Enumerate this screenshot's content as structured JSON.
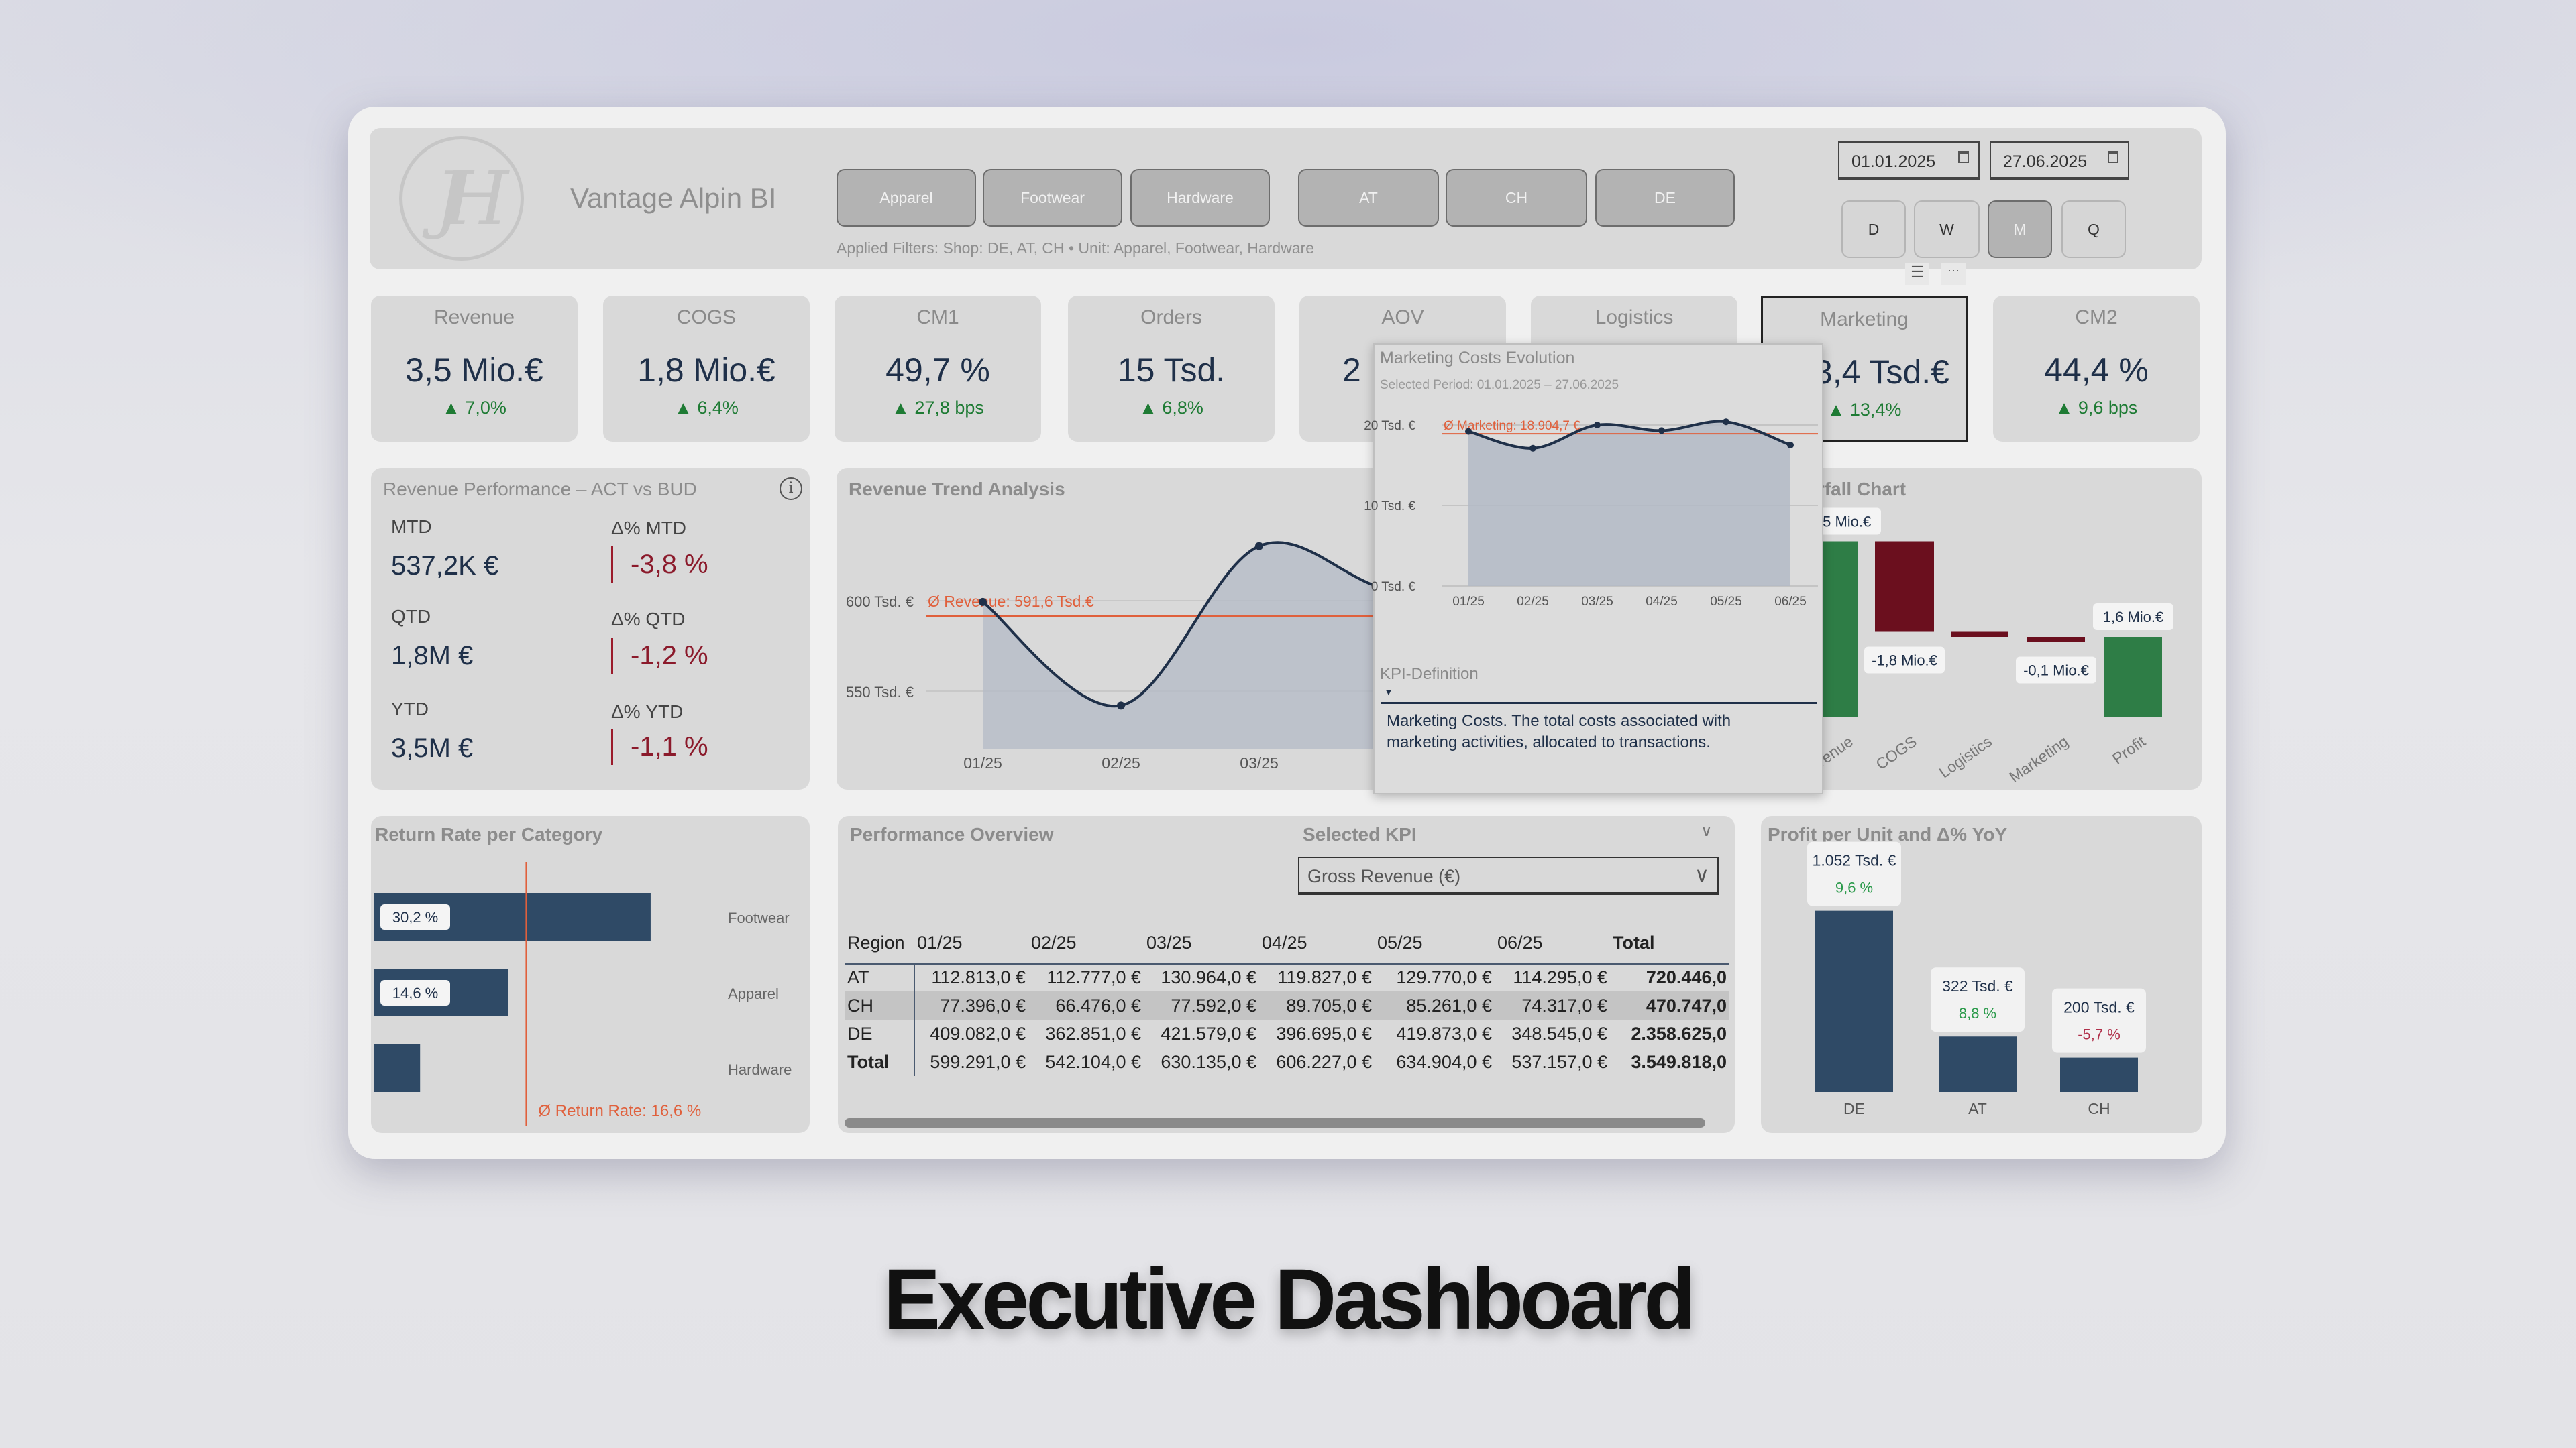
{
  "header": {
    "logo_text": "JH",
    "title": "Vantage Alpin BI",
    "category_buttons": [
      "Apparel",
      "Footwear",
      "Hardware"
    ],
    "shop_buttons": [
      "AT",
      "CH",
      "DE"
    ],
    "filters_text": "Applied Filters: Shop: DE, AT, CH • Unit: Apparel, Footwear, Hardware",
    "date_from": "01.01.2025",
    "date_to": "27.06.2025",
    "granularity": [
      "D",
      "W",
      "M",
      "Q"
    ],
    "granularity_selected": "M"
  },
  "kpis": [
    {
      "title": "Revenue",
      "value": "3,5 Mio.€",
      "delta": "▲ 7,0%"
    },
    {
      "title": "COGS",
      "value": "1,8 Mio.€",
      "delta": "▲ 6,4%"
    },
    {
      "title": "CM1",
      "value": "49,7 %",
      "delta": "▲ 27,8 bps"
    },
    {
      "title": "Orders",
      "value": "15 Tsd.",
      "delta": "▲ 6,8%"
    },
    {
      "title": "AOV",
      "value": "2",
      "delta": ""
    },
    {
      "title": "Logistics",
      "value": "",
      "delta": ""
    },
    {
      "title": "Marketing",
      "value": "113,4 Tsd.€",
      "delta": "▲ 13,4%"
    },
    {
      "title": "CM2",
      "value": "44,4 %",
      "delta": "▲ 9,6 bps"
    }
  ],
  "colors": {
    "navy": "#1f3049",
    "bar": "#2f4a66",
    "positive": "#1e7b34",
    "negative": "#8b1a2b",
    "average_line": "#e0603c",
    "waterfall_up": "#2e7d46",
    "waterfall_down": "#6b0f1e"
  },
  "revenue_performance": {
    "title": "Revenue Performance – ACT vs BUD",
    "info_icon": "info-icon",
    "rows": [
      {
        "label": "MTD",
        "value": "537,2K €",
        "delta_label": "Δ% MTD",
        "delta": "-3,8 %"
      },
      {
        "label": "QTD",
        "value": "1,8M €",
        "delta_label": "Δ% QTD",
        "delta": "-1,2 %"
      },
      {
        "label": "YTD",
        "value": "3,5M €",
        "delta_label": "Δ% YTD",
        "delta": "-1,1 %"
      }
    ]
  },
  "revenue_trend": {
    "title": "Revenue Trend Analysis",
    "avg_label": "Ø Revenue: 591,6 Tsd.€"
  },
  "tooltip": {
    "title": "Marketing Costs Evolution",
    "period": "Selected Period: 01.01.2025 – 27.06.2025",
    "avg_label": "Ø Marketing: 18.904,7 €",
    "kpi_definition_title": "KPI-Definition",
    "kpi_definition_text": "Marketing Costs. The total costs associated with marketing activities, allocated to transactions."
  },
  "waterfall": {
    "title": "Waterfall Chart"
  },
  "return_rate": {
    "title": "Return Rate per Category",
    "avg_label": "Ø Return Rate: 16,6 %"
  },
  "performance_overview": {
    "title": "Performance Overview",
    "selected_kpi_label": "Selected KPI",
    "dropdown_value": "Gross Revenue (€)",
    "columns": [
      "Region",
      "01/25",
      "02/25",
      "03/25",
      "04/25",
      "05/25",
      "06/25",
      "Total"
    ],
    "rows": [
      [
        "AT",
        "112.813,0 €",
        "112.777,0 €",
        "130.964,0 €",
        "119.827,0 €",
        "129.770,0 €",
        "114.295,0 €",
        "720.446,0"
      ],
      [
        "CH",
        "77.396,0 €",
        "66.476,0 €",
        "77.592,0 €",
        "89.705,0 €",
        "85.261,0 €",
        "74.317,0 €",
        "470.747,0"
      ],
      [
        "DE",
        "409.082,0 €",
        "362.851,0 €",
        "421.579,0 €",
        "396.695,0 €",
        "419.873,0 €",
        "348.545,0 €",
        "2.358.625,0"
      ],
      [
        "Total",
        "599.291,0 €",
        "542.104,0 €",
        "630.135,0 €",
        "606.227,0 €",
        "634.904,0 €",
        "537.157,0 €",
        "3.549.818,0"
      ]
    ],
    "highlighted_row": "CH"
  },
  "profit_per_unit": {
    "title": "Profit per Unit and Δ% YoY"
  },
  "caption": "Executive Dashboard",
  "chart_data": [
    {
      "id": "revenue_trend",
      "type": "area",
      "x": [
        "01/25",
        "02/25",
        "03/25",
        "04/25",
        "05/25",
        "06/25"
      ],
      "values": [
        599.291,
        542.104,
        630.135,
        606.227,
        634.904,
        537.157
      ],
      "unit": "Tsd. €",
      "y_ticks": [
        "550 Tsd. €",
        "600 Tsd. €"
      ],
      "y_tick_values": [
        550,
        600
      ],
      "average": 591.6,
      "grid": true
    },
    {
      "id": "marketing_costs",
      "type": "area",
      "x": [
        "01/25",
        "02/25",
        "03/25",
        "04/25",
        "05/25",
        "06/25"
      ],
      "values": [
        19.2,
        17.1,
        20.0,
        19.3,
        20.4,
        17.5
      ],
      "unit": "Tsd. €",
      "y_ticks": [
        "0 Tsd. €",
        "10 Tsd. €",
        "20 Tsd. €"
      ],
      "y_tick_values": [
        0,
        10,
        20
      ],
      "ylim": [
        0,
        20
      ],
      "average": 18.9047,
      "grid": true
    },
    {
      "id": "waterfall",
      "type": "bar",
      "categories": [
        "Revenue",
        "COGS",
        "Logistics",
        "Marketing",
        "Profit"
      ],
      "values": [
        3.5,
        -1.8,
        -0.1,
        -0.1,
        1.6
      ],
      "labels": [
        "3,5 Mio.€",
        "-1,8 Mio.€",
        "",
        "-0,1 Mio.€",
        "1,6 Mio.€"
      ],
      "unit": "Mio.€"
    },
    {
      "id": "return_rate",
      "type": "bar",
      "orientation": "horizontal",
      "categories": [
        "Footwear",
        "Apparel",
        "Hardware"
      ],
      "values": [
        30.2,
        14.6,
        5.0
      ],
      "labels": [
        "30,2 %",
        "14,6 %",
        ""
      ],
      "average": 16.6
    },
    {
      "id": "profit_per_unit",
      "type": "bar",
      "categories": [
        "DE",
        "AT",
        "CH"
      ],
      "values": [
        1052,
        322,
        200
      ],
      "labels": [
        "1.052 Tsd. €",
        "322 Tsd. €",
        "200 Tsd. €"
      ],
      "yoy": [
        "9,6 %",
        "8,8 %",
        "-5,7 %"
      ],
      "yoy_values": [
        9.6,
        8.8,
        -5.7
      ]
    }
  ]
}
